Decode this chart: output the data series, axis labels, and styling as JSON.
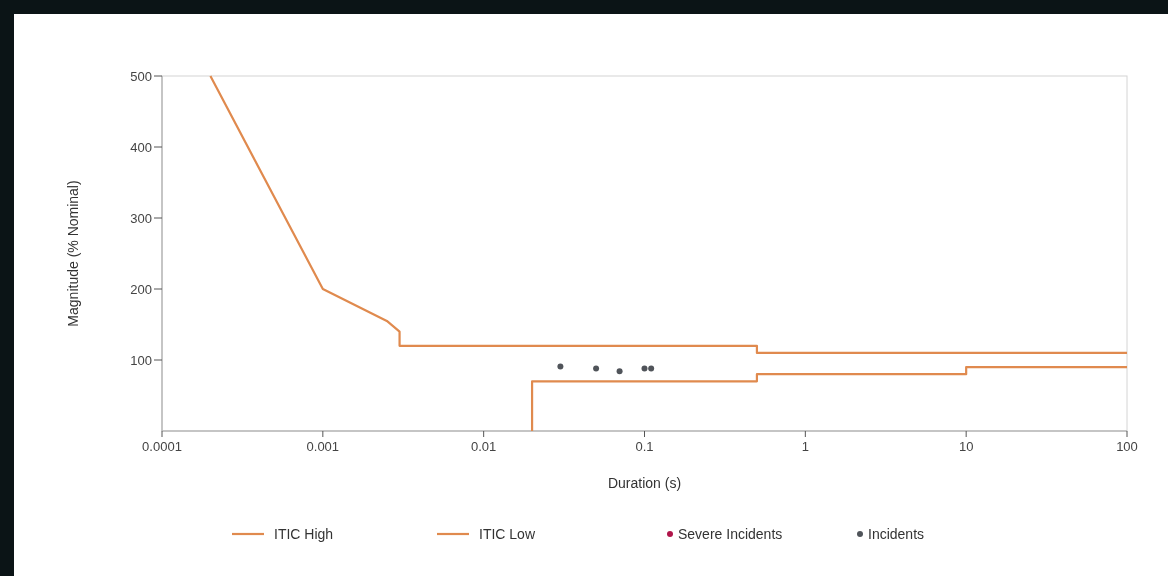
{
  "chart_data": {
    "type": "line",
    "xlabel": "Duration (s)",
    "ylabel": "Magnitude (% Nominal)",
    "log": "x",
    "xlim": [
      0.0001,
      100
    ],
    "xticks": [
      0.0001,
      0.001,
      0.01,
      0.1,
      1,
      10,
      100
    ],
    "ylim": [
      0,
      500
    ],
    "yticks": [
      100,
      200,
      300,
      400,
      500
    ],
    "grid": false,
    "legend": "bottom",
    "series": [
      {
        "name": "ITIC High",
        "color": "#e08a4e",
        "x": [
          0.0002,
          0.001,
          0.0025,
          0.003,
          0.003,
          0.5,
          0.5,
          100
        ],
        "values": [
          500,
          200,
          155,
          140,
          120,
          120,
          110,
          110
        ]
      },
      {
        "name": "ITIC Low",
        "color": "#e08a4e",
        "x": [
          0.02,
          0.02,
          0.5,
          0.5,
          10,
          10,
          100
        ],
        "values": [
          0,
          70,
          70,
          80,
          80,
          90,
          90
        ]
      },
      {
        "name": "Severe Incidents",
        "type": "scatter",
        "marker": "circle",
        "color": "#b0154a"
      },
      {
        "name": "Incidents",
        "type": "scatter",
        "marker": "circle",
        "color": "#50545a",
        "x": [
          0.03,
          0.05,
          0.07,
          0.1,
          0.11
        ],
        "values": [
          91,
          88,
          84,
          88,
          88
        ]
      }
    ]
  }
}
